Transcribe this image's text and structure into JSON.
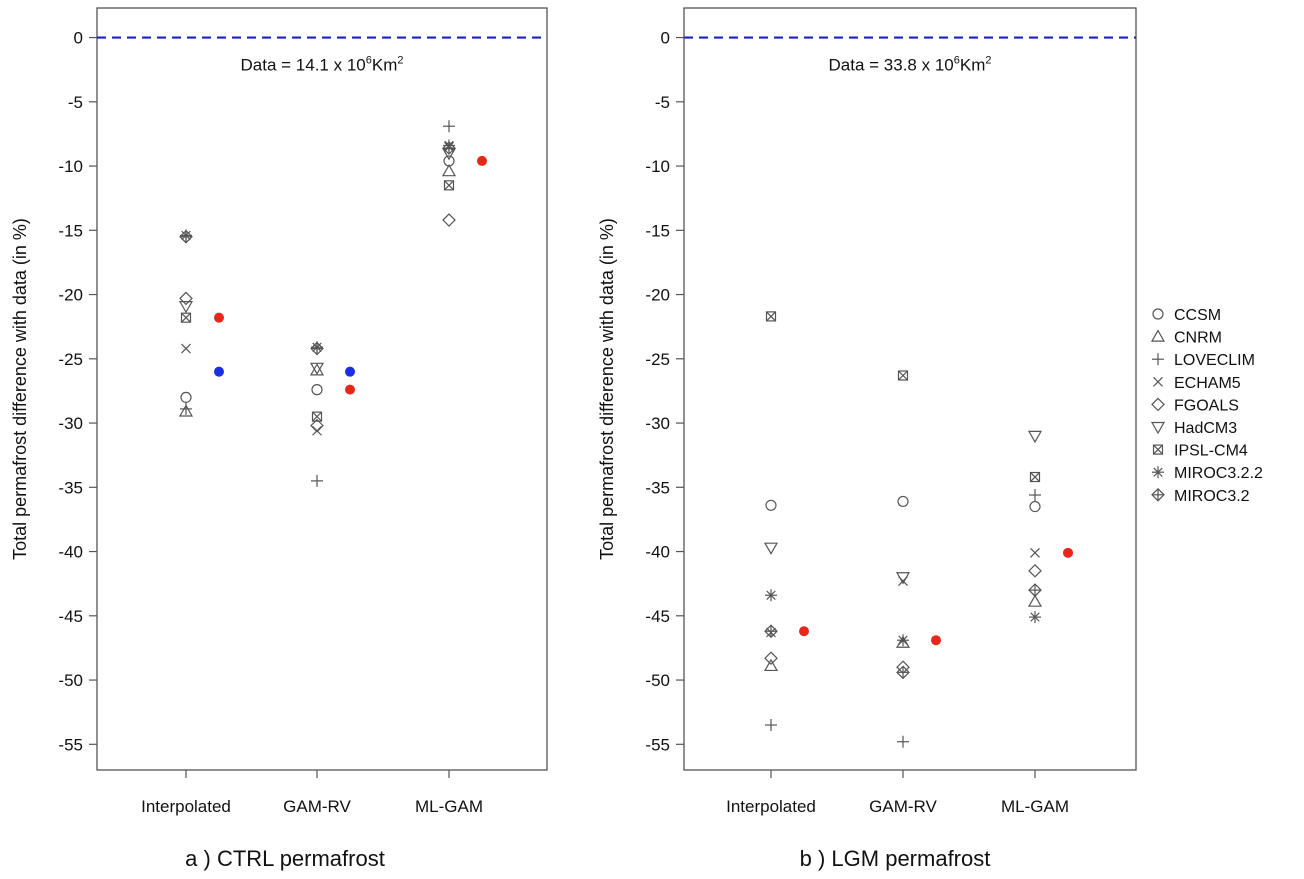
{
  "figure": {
    "legend_position": "right"
  },
  "legend": {
    "entries": [
      {
        "name": "CCSM",
        "marker": "circle"
      },
      {
        "name": "CNRM",
        "marker": "triangle-up"
      },
      {
        "name": "LOVECLIM",
        "marker": "plus"
      },
      {
        "name": "ECHAM5",
        "marker": "cross"
      },
      {
        "name": "FGOALS",
        "marker": "diamond"
      },
      {
        "name": "HadCM3",
        "marker": "triangle-down"
      },
      {
        "name": "IPSL-CM4",
        "marker": "square-cross"
      },
      {
        "name": "MIROC3.2.2",
        "marker": "asterisk"
      },
      {
        "name": "MIROC3.2",
        "marker": "diamond-plus"
      }
    ]
  },
  "colors": {
    "reference_line": "#1a22c8",
    "ensemble_red": "#e8261b",
    "ensemble_blue": "#1a2ee6",
    "marker": "#555555",
    "axis": "#555555"
  },
  "chart_data": [
    {
      "type": "scatter",
      "panel": "a",
      "caption": "a ) CTRL permafrost",
      "annotation": {
        "prefix": "Data = 14.1 x 10",
        "sup": "6",
        "unit": "Km",
        "unit_sup": "2"
      },
      "ylabel": "Total permafrost difference with data (in %)",
      "categories": [
        "Interpolated",
        "GAM-RV",
        "ML-GAM"
      ],
      "ylim": [
        -57,
        2.3
      ],
      "yticks": [
        0,
        -5,
        -10,
        -15,
        -20,
        -25,
        -30,
        -35,
        -40,
        -45,
        -50,
        -55
      ],
      "reference_line_y": 0,
      "series": [
        {
          "name": "CCSM",
          "values": [
            -28.0,
            -27.4,
            -9.6
          ]
        },
        {
          "name": "CNRM",
          "values": [
            -29.1,
            -25.9,
            -10.4
          ]
        },
        {
          "name": "LOVECLIM",
          "values": [
            -28.9,
            -34.5,
            -6.9
          ]
        },
        {
          "name": "ECHAM5",
          "values": [
            -24.2,
            -30.6,
            -8.5
          ]
        },
        {
          "name": "FGOALS",
          "values": [
            -20.3,
            -30.2,
            -14.2
          ]
        },
        {
          "name": "HadCM3",
          "values": [
            -20.9,
            -25.7,
            -9.0
          ]
        },
        {
          "name": "IPSL-CM4",
          "values": [
            -21.8,
            -29.5,
            -11.5
          ]
        },
        {
          "name": "MIROC3.2.2",
          "values": [
            -15.4,
            -24.1,
            -8.4
          ]
        },
        {
          "name": "MIROC3.2",
          "values": [
            -15.5,
            -24.2,
            -8.6
          ]
        }
      ],
      "ensemble_points": [
        {
          "color": "red",
          "category": 0,
          "value": -21.8
        },
        {
          "color": "blue",
          "category": 0,
          "value": -26.0
        },
        {
          "color": "blue",
          "category": 1,
          "value": -26.0
        },
        {
          "color": "red",
          "category": 1,
          "value": -27.4
        },
        {
          "color": "red",
          "category": 2,
          "value": -9.6
        }
      ]
    },
    {
      "type": "scatter",
      "panel": "b",
      "caption": "b ) LGM permafrost",
      "annotation": {
        "prefix": "Data = 33.8 x 10",
        "sup": "6",
        "unit": "Km",
        "unit_sup": "2"
      },
      "ylabel": "Total permafrost difference with data (in %)",
      "categories": [
        "Interpolated",
        "GAM-RV",
        "ML-GAM"
      ],
      "ylim": [
        -57,
        2.3
      ],
      "yticks": [
        0,
        -5,
        -10,
        -15,
        -20,
        -25,
        -30,
        -35,
        -40,
        -45,
        -50,
        -55
      ],
      "reference_line_y": 0,
      "series": [
        {
          "name": "CCSM",
          "values": [
            -36.4,
            -36.1,
            -36.5
          ]
        },
        {
          "name": "CNRM",
          "values": [
            -48.9,
            -47.1,
            -43.9
          ]
        },
        {
          "name": "LOVECLIM",
          "values": [
            -53.5,
            -54.8,
            -35.6
          ]
        },
        {
          "name": "ECHAM5",
          "values": [
            -46.3,
            -42.3,
            -40.1
          ]
        },
        {
          "name": "FGOALS",
          "values": [
            -48.3,
            -49.0,
            -41.5
          ]
        },
        {
          "name": "HadCM3",
          "values": [
            -39.7,
            -42.0,
            -31.0
          ]
        },
        {
          "name": "IPSL-CM4",
          "values": [
            -21.7,
            -26.3,
            -34.2
          ]
        },
        {
          "name": "MIROC3.2.2",
          "values": [
            -43.4,
            -46.9,
            -45.1
          ]
        },
        {
          "name": "MIROC3.2",
          "values": [
            -46.2,
            -49.4,
            -43.0
          ]
        }
      ],
      "ensemble_points": [
        {
          "color": "red",
          "category": 0,
          "value": -46.2
        },
        {
          "color": "red",
          "category": 1,
          "value": -46.9
        },
        {
          "color": "red",
          "category": 2,
          "value": -40.1
        }
      ]
    }
  ]
}
